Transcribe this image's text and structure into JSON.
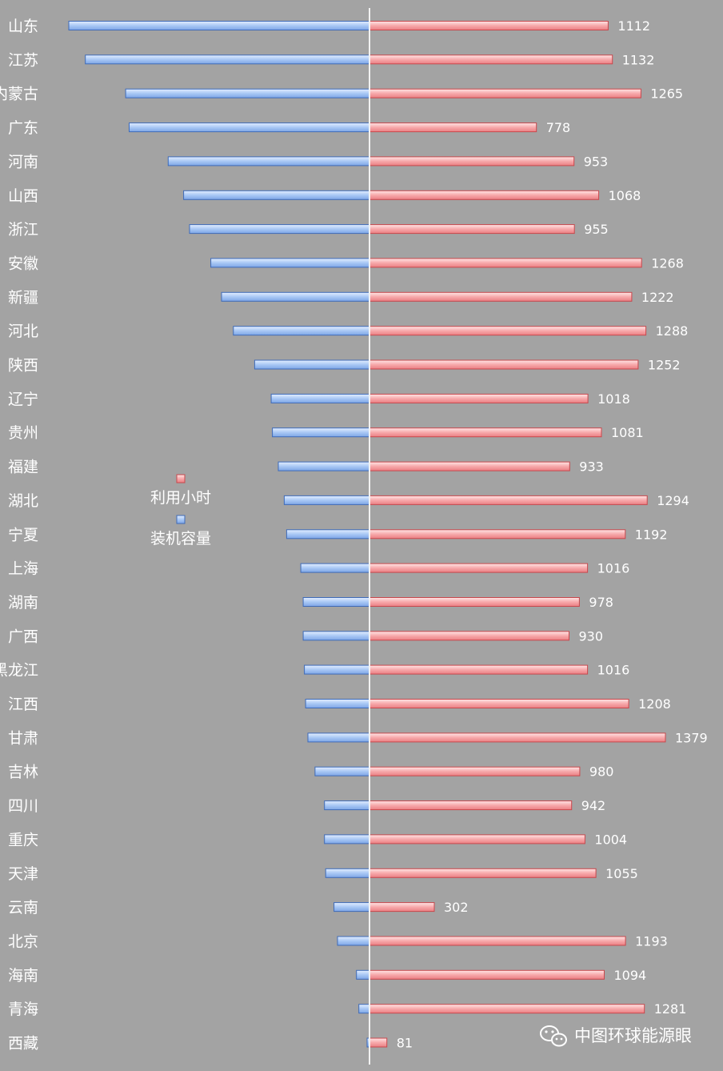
{
  "chart_data": {
    "type": "bar",
    "orientation": "horizontal-butterfly",
    "categories": [
      "山东",
      "江苏",
      "内蒙古",
      "广东",
      "河南",
      "山西",
      "浙江",
      "安徽",
      "新疆",
      "河北",
      "陕西",
      "辽宁",
      "贵州",
      "福建",
      "湖北",
      "宁夏",
      "上海",
      "湖南",
      "广西",
      "黑龙江",
      "江西",
      "甘肃",
      "吉林",
      "四川",
      "重庆",
      "天津",
      "云南",
      "北京",
      "海南",
      "青海",
      "西藏"
    ],
    "series": [
      {
        "name": "装机容量",
        "side": "left",
        "color": "#9dc0f2",
        "values": [
          1270,
          1200,
          1030,
          1015,
          850,
          785,
          760,
          670,
          625,
          575,
          485,
          415,
          410,
          385,
          360,
          350,
          290,
          280,
          280,
          275,
          270,
          260,
          230,
          190,
          190,
          185,
          150,
          135,
          55,
          45,
          5
        ]
      },
      {
        "name": "利用小时",
        "side": "right",
        "color": "#f4a6a8",
        "values": [
          1112,
          1132,
          1265,
          778,
          953,
          1068,
          955,
          1268,
          1222,
          1288,
          1252,
          1018,
          1081,
          933,
          1294,
          1192,
          1016,
          978,
          930,
          1016,
          1208,
          1379,
          980,
          942,
          1004,
          1055,
          302,
          1193,
          1094,
          1281,
          81
        ],
        "data_labels": [
          "1112",
          "1132",
          "1265",
          "778",
          "953",
          "1068",
          "955",
          "1268",
          "1222",
          "1288",
          "1252",
          "1018",
          "1081",
          "933",
          "1294",
          "1192",
          "1016",
          "978",
          "930",
          "1016",
          "1208",
          "1379",
          "980",
          "942",
          "1004",
          "1055",
          "302",
          "1193",
          "1094",
          "1281",
          "81"
        ]
      }
    ],
    "legend": {
      "placement": "left-center",
      "items": [
        {
          "name": "利用小时",
          "color": "#f4a6a8"
        },
        {
          "name": "装机容量",
          "color": "#9dc0f2"
        }
      ]
    },
    "grid": false,
    "background": "#a3a3a3"
  },
  "watermark": {
    "text": "中图环球能源眼",
    "icon": "wechat-icon"
  }
}
